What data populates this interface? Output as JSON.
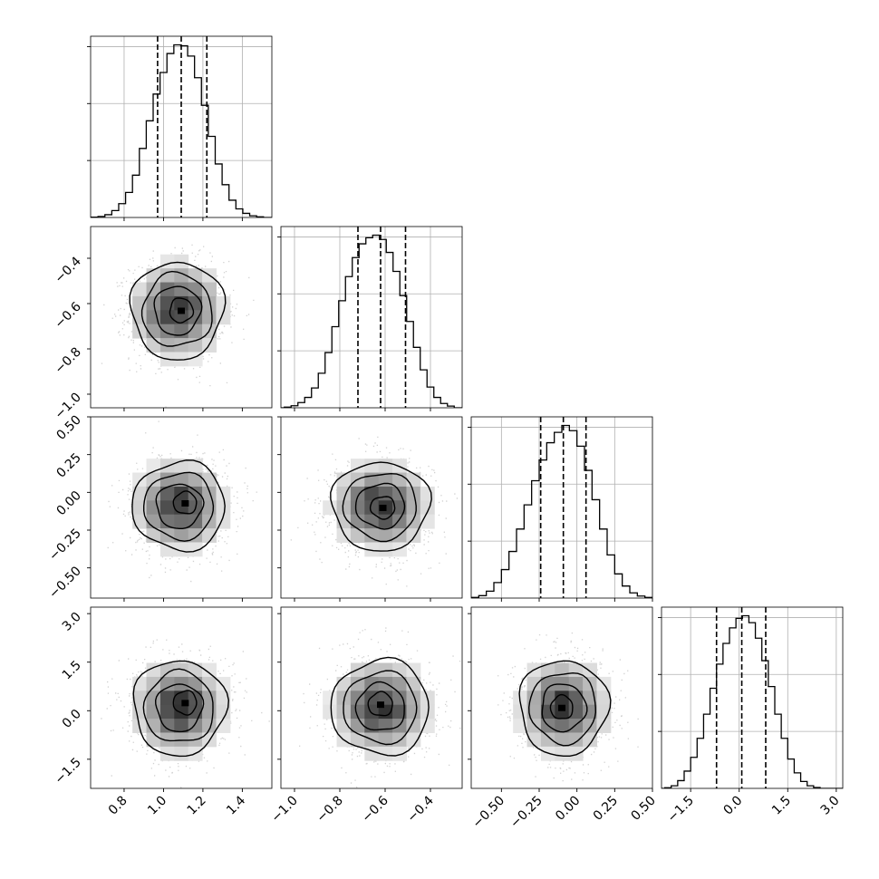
{
  "chart_data": {
    "type": "corner",
    "grid": true,
    "parameters": [
      {
        "range": [
          0.63,
          1.55
        ],
        "ticks": [
          0.8,
          1.0,
          1.2,
          1.4
        ],
        "tick_labels": [
          "0.8",
          "1.0",
          "1.2",
          "1.4"
        ],
        "quantiles": [
          0.97,
          1.09,
          1.22
        ],
        "hist_bins": [
          [
            0.65,
            0.002
          ],
          [
            0.685,
            0.006
          ],
          [
            0.72,
            0.016
          ],
          [
            0.755,
            0.04
          ],
          [
            0.79,
            0.08
          ],
          [
            0.825,
            0.145
          ],
          [
            0.86,
            0.245
          ],
          [
            0.895,
            0.4
          ],
          [
            0.93,
            0.56
          ],
          [
            0.965,
            0.715
          ],
          [
            1.0,
            0.84
          ],
          [
            1.035,
            0.95
          ],
          [
            1.07,
            1.0
          ],
          [
            1.105,
            0.995
          ],
          [
            1.14,
            0.935
          ],
          [
            1.175,
            0.81
          ],
          [
            1.21,
            0.65
          ],
          [
            1.245,
            0.47
          ],
          [
            1.28,
            0.31
          ],
          [
            1.315,
            0.19
          ],
          [
            1.35,
            0.1
          ],
          [
            1.385,
            0.05
          ],
          [
            1.42,
            0.024
          ],
          [
            1.455,
            0.01
          ],
          [
            1.49,
            0.004
          ]
        ]
      },
      {
        "range": [
          -1.06,
          -0.26
        ],
        "ticks": [
          -1.0,
          -0.8,
          -0.6,
          -0.4
        ],
        "tick_labels": [
          "−1.0",
          "−0.8",
          "−0.6",
          "−0.4"
        ],
        "quantiles": [
          -0.72,
          -0.62,
          -0.51
        ],
        "hist_bins": [
          [
            -1.03,
            0.004
          ],
          [
            -1.0,
            0.012
          ],
          [
            -0.97,
            0.03
          ],
          [
            -0.94,
            0.06
          ],
          [
            -0.91,
            0.115
          ],
          [
            -0.88,
            0.2
          ],
          [
            -0.85,
            0.32
          ],
          [
            -0.82,
            0.47
          ],
          [
            -0.79,
            0.62
          ],
          [
            -0.76,
            0.76
          ],
          [
            -0.73,
            0.87
          ],
          [
            -0.7,
            0.95
          ],
          [
            -0.67,
            0.985
          ],
          [
            -0.64,
            1.0
          ],
          [
            -0.61,
            0.975
          ],
          [
            -0.58,
            0.9
          ],
          [
            -0.55,
            0.79
          ],
          [
            -0.52,
            0.65
          ],
          [
            -0.49,
            0.5
          ],
          [
            -0.46,
            0.35
          ],
          [
            -0.43,
            0.22
          ],
          [
            -0.4,
            0.12
          ],
          [
            -0.37,
            0.06
          ],
          [
            -0.34,
            0.025
          ],
          [
            -0.31,
            0.01
          ]
        ]
      },
      {
        "range": [
          -0.7,
          0.5
        ],
        "ticks": [
          -0.5,
          -0.25,
          0.0,
          0.25,
          0.5
        ],
        "tick_labels": [
          "−0.50",
          "−0.25",
          "0.00",
          "0.25",
          "0.50"
        ],
        "quantiles": [
          -0.24,
          -0.09,
          0.06
        ],
        "hist_bins": [
          [
            -0.675,
            0.004
          ],
          [
            -0.625,
            0.014
          ],
          [
            -0.575,
            0.04
          ],
          [
            -0.525,
            0.09
          ],
          [
            -0.475,
            0.165
          ],
          [
            -0.425,
            0.27
          ],
          [
            -0.375,
            0.4
          ],
          [
            -0.325,
            0.54
          ],
          [
            -0.275,
            0.68
          ],
          [
            -0.225,
            0.8
          ],
          [
            -0.175,
            0.9
          ],
          [
            -0.125,
            0.96
          ],
          [
            -0.075,
            1.0
          ],
          [
            -0.025,
            0.97
          ],
          [
            0.025,
            0.88
          ],
          [
            0.075,
            0.74
          ],
          [
            0.125,
            0.57
          ],
          [
            0.175,
            0.4
          ],
          [
            0.225,
            0.25
          ],
          [
            0.275,
            0.14
          ],
          [
            0.325,
            0.07
          ],
          [
            0.375,
            0.03
          ],
          [
            0.425,
            0.012
          ],
          [
            0.475,
            0.004
          ]
        ]
      },
      {
        "range": [
          -2.4,
          3.2
        ],
        "ticks": [
          -1.5,
          0.0,
          1.5,
          3.0
        ],
        "tick_labels": [
          "−1.5",
          "0.0",
          "1.5",
          "3.0"
        ],
        "quantiles": [
          -0.7,
          0.08,
          0.82
        ],
        "hist_bins": [
          [
            -2.2,
            0.004
          ],
          [
            -2.0,
            0.015
          ],
          [
            -1.8,
            0.045
          ],
          [
            -1.6,
            0.1
          ],
          [
            -1.4,
            0.18
          ],
          [
            -1.2,
            0.29
          ],
          [
            -1.0,
            0.43
          ],
          [
            -0.8,
            0.58
          ],
          [
            -0.6,
            0.72
          ],
          [
            -0.4,
            0.84
          ],
          [
            -0.2,
            0.93
          ],
          [
            0.0,
            0.985
          ],
          [
            0.2,
            1.0
          ],
          [
            0.4,
            0.96
          ],
          [
            0.6,
            0.87
          ],
          [
            0.8,
            0.74
          ],
          [
            1.0,
            0.59
          ],
          [
            1.2,
            0.43
          ],
          [
            1.4,
            0.29
          ],
          [
            1.6,
            0.17
          ],
          [
            1.8,
            0.09
          ],
          [
            2.0,
            0.04
          ],
          [
            2.2,
            0.015
          ],
          [
            2.4,
            0.005
          ]
        ]
      }
    ],
    "contour_levels": [
      0.5,
      1.0,
      1.5,
      2.0
    ],
    "contour_pairs": [
      {
        "row": 1,
        "col": 0,
        "center": [
          1.07,
          -0.63
        ],
        "sigma": [
          0.12,
          0.11
        ],
        "core_offset": [
          0.02,
          0.0
        ]
      },
      {
        "row": 2,
        "col": 0,
        "center": [
          1.08,
          -0.09
        ],
        "sigma": [
          0.12,
          0.15
        ],
        "core_offset": [
          0.03,
          0.02
        ]
      },
      {
        "row": 2,
        "col": 1,
        "center": [
          -0.62,
          -0.09
        ],
        "sigma": [
          0.11,
          0.15
        ],
        "core_offset": [
          0.01,
          -0.01
        ]
      },
      {
        "row": 3,
        "col": 0,
        "center": [
          1.08,
          0.1
        ],
        "sigma": [
          0.12,
          0.75
        ],
        "core_offset": [
          0.03,
          0.15
        ]
      },
      {
        "row": 3,
        "col": 1,
        "center": [
          -0.62,
          0.1
        ],
        "sigma": [
          0.11,
          0.75
        ],
        "core_offset": [
          0.0,
          0.1
        ]
      },
      {
        "row": 3,
        "col": 2,
        "center": [
          -0.09,
          0.1
        ],
        "sigma": [
          0.15,
          0.75
        ],
        "core_offset": [
          -0.01,
          0.0
        ]
      }
    ]
  }
}
